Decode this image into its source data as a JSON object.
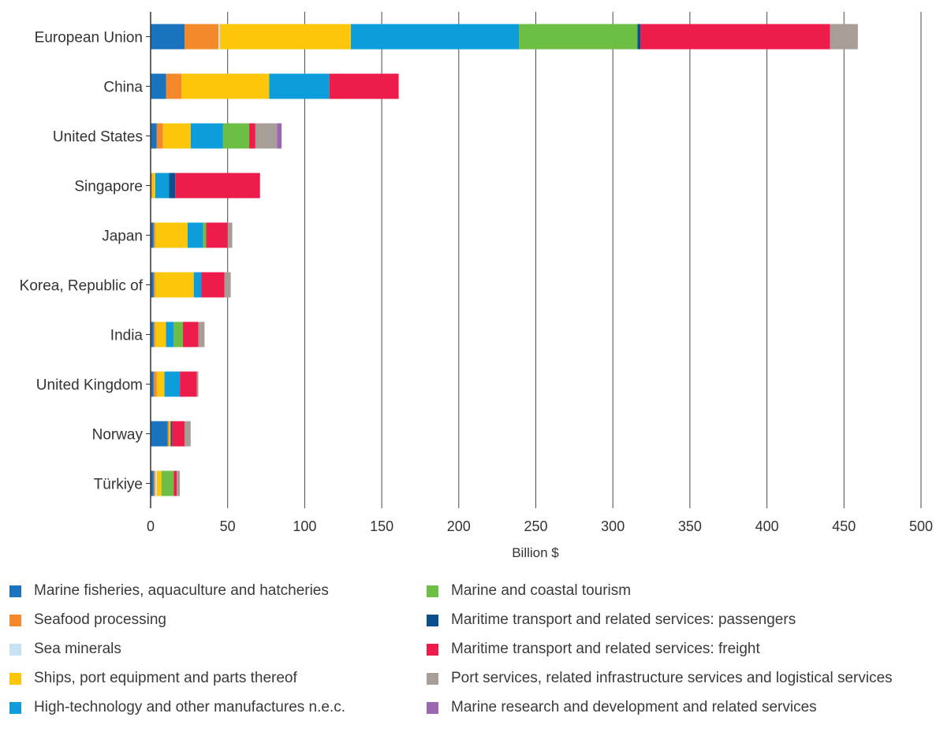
{
  "chart_data": {
    "type": "bar",
    "orientation": "horizontal",
    "stacked": true,
    "title": "",
    "xlabel": "Billion $",
    "ylabel": "",
    "xlim": [
      0,
      500
    ],
    "xticks": [
      0,
      50,
      100,
      150,
      200,
      250,
      300,
      350,
      400,
      450,
      500
    ],
    "grid": "vertical",
    "legend_position": "bottom",
    "categories": [
      "European Union",
      "China",
      "United States",
      "Singapore",
      "Japan",
      "Korea, Republic of",
      "India",
      "United Kingdom",
      "Norway",
      "Türkiye"
    ],
    "series": [
      {
        "name": "Marine fisheries, aquaculture and hatcheries",
        "color": "#1a73bd",
        "values": [
          22,
          10,
          4,
          0,
          2,
          2,
          2,
          2,
          11,
          2
        ]
      },
      {
        "name": "Seafood processing",
        "color": "#f4892c",
        "values": [
          22,
          10,
          4,
          1,
          1,
          1,
          1,
          2,
          1,
          1
        ]
      },
      {
        "name": "Sea minerals",
        "color": "#c7e2f3",
        "values": [
          1,
          0,
          0,
          0,
          0,
          0,
          0,
          0,
          0,
          1
        ]
      },
      {
        "name": "Ships, port equipment and parts thereof",
        "color": "#fcc60a",
        "values": [
          85,
          57,
          18,
          2,
          21,
          25,
          7,
          5,
          1,
          3
        ]
      },
      {
        "name": "High-technology and other manufactures n.e.c.",
        "color": "#0d9ddb",
        "values": [
          109,
          39,
          21,
          9,
          10,
          5,
          5,
          10,
          0,
          0
        ]
      },
      {
        "name": "Marine and coastal tourism",
        "color": "#6cbe45",
        "values": [
          77,
          0,
          17,
          0,
          2,
          0,
          6,
          0,
          0,
          8
        ]
      },
      {
        "name": "Maritime transport and related services: passengers",
        "color": "#0b4f8f",
        "values": [
          2,
          0,
          0,
          4,
          0,
          0,
          0,
          0,
          1,
          0
        ]
      },
      {
        "name": "Maritime transport and related services: freight",
        "color": "#ee1c4a",
        "values": [
          123,
          45,
          4,
          55,
          14,
          15,
          10,
          11,
          8,
          2
        ]
      },
      {
        "name": "Port services, related infrastructure services and logistical services",
        "color": "#a79e97",
        "values": [
          18,
          0,
          14,
          0,
          3,
          4,
          4,
          1,
          4,
          2
        ]
      },
      {
        "name": "Marine research and development and related services",
        "color": "#9b67b0",
        "values": [
          0,
          0,
          3,
          0,
          0,
          0,
          0,
          0,
          0,
          0
        ]
      }
    ]
  }
}
